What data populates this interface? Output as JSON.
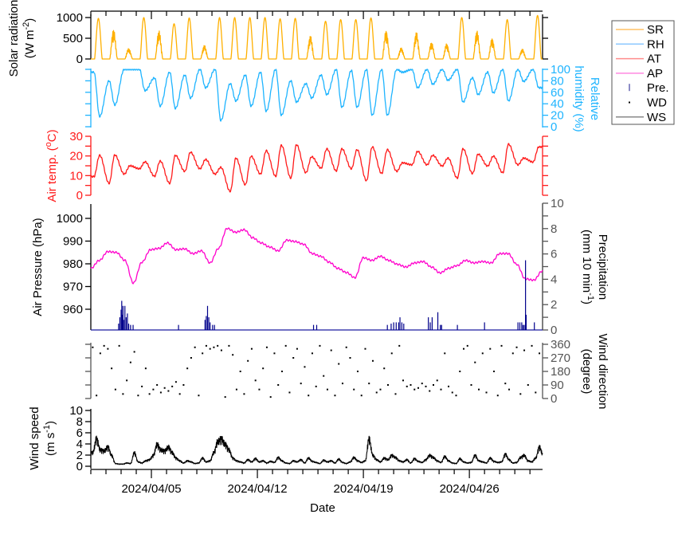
{
  "chart_data": {
    "type": "line",
    "xlabel": "Date",
    "xlim": [
      "2024-04-01T00:00",
      "2024-04-30T20:00"
    ],
    "x_tick_labels": [
      "2024/04/05",
      "2024/04/12",
      "2024/04/19",
      "2024/04/26"
    ],
    "x_tick_dates": [
      "2024-04-05T00:00",
      "2024-04-12T00:00",
      "2024-04-19T00:00",
      "2024-04-26T00:00"
    ],
    "legend": {
      "placement": "right",
      "entries": [
        {
          "label": "SR",
          "color": "#FFC266",
          "mark": "line"
        },
        {
          "label": "RH",
          "color": "#8CC8FF",
          "mark": "line"
        },
        {
          "label": "AT",
          "color": "#FF8C8C",
          "mark": "line"
        },
        {
          "label": "AP",
          "color": "#FF88E0",
          "mark": "line"
        },
        {
          "label": "Pre.",
          "color": "#4040A0",
          "mark": "bar"
        },
        {
          "label": "WD",
          "color": "#000000",
          "mark": "dot"
        },
        {
          "label": "WS",
          "color": "#888888",
          "mark": "line"
        }
      ]
    },
    "panels": {
      "sr": {
        "ylabel": [
          "Solar radiation",
          "(W m",
          "-2",
          ")"
        ],
        "ylim": [
          0,
          1000
        ],
        "ticks": [
          0,
          500,
          1000
        ],
        "color": "#FFB000",
        "daily_peak_start": "2024-04-01",
        "daily_peak_W_m2": [
          980,
          720,
          256,
          1000,
          690,
          850,
          990,
          330,
          1000,
          1000,
          1000,
          1000,
          970,
          980,
          560,
          910,
          950,
          950,
          990,
          690,
          270,
          650,
          400,
          370,
          1000,
          690,
          500,
          950,
          240,
          1050
        ]
      },
      "rh": {
        "ylabel": [
          "Relative",
          "humidity (%)"
        ],
        "ylim": [
          0,
          100
        ],
        "ticks": [
          0,
          20,
          40,
          60,
          80,
          100
        ],
        "color": "#1EB4FF",
        "daily_start": "2024-04-01",
        "daily_min_pct": [
          18,
          38,
          100,
          63,
          36,
          32,
          50,
          68,
          11,
          45,
          36,
          27,
          20,
          43,
          50,
          56,
          34,
          34,
          20,
          20,
          95,
          68,
          74,
          81,
          43,
          56,
          59,
          45,
          79,
          68
        ],
        "daily_night_max_pct": [
          95,
          80,
          100,
          100,
          85,
          95,
          90,
          100,
          100,
          75,
          90,
          95,
          100,
          80,
          75,
          90,
          100,
          98,
          100,
          100,
          100,
          100,
          100,
          100,
          100,
          85,
          95,
          100,
          100,
          100
        ]
      },
      "at": {
        "ylabel": [
          "Air temp. (",
          "o",
          "C)"
        ],
        "ylim": [
          0,
          30
        ],
        "ticks": [
          0,
          10,
          20,
          30
        ],
        "color": "#FF1A1A",
        "daily_start": "2024-04-01",
        "daily_min_C": [
          9.5,
          6.1,
          10.8,
          13.5,
          9.7,
          6.1,
          12.2,
          13.5,
          10.8,
          2.0,
          5.4,
          10.8,
          9.7,
          8.8,
          11.5,
          13.8,
          12.4,
          13.5,
          7.4,
          11.1,
          12.2,
          15.5,
          15.5,
          14.9,
          8.8,
          11.1,
          14.9,
          11.5,
          15.5,
          16.9
        ],
        "daily_max_C": [
          20.3,
          20.5,
          15.0,
          17.0,
          17.4,
          20.3,
          21.9,
          18.2,
          14.2,
          18.9,
          19.9,
          22.7,
          25.4,
          25.7,
          19.6,
          23.6,
          23.6,
          23.2,
          24.6,
          23.2,
          16.5,
          22.3,
          20.3,
          18.9,
          23.6,
          20.9,
          19.9,
          26.0,
          18.9,
          24.6
        ]
      },
      "ap": {
        "ylabel": "Air Pressure (hPa)",
        "ylim": [
          951,
          1006
        ],
        "ticks": [
          960,
          970,
          980,
          990,
          1000
        ],
        "color": "#FF00CC",
        "start": "2024-04-01T00:00",
        "step_hours": 13.5,
        "values_hPa": [
          978,
          981.5,
          985.4,
          985,
          981.5,
          971.5,
          980.7,
          986.2,
          986.8,
          989.2,
          986.2,
          986.6,
          984.5,
          985.7,
          980.4,
          986.8,
          995.6,
          993.9,
          995,
          991.5,
          989.2,
          987.4,
          985.7,
          990.4,
          989.8,
          988.6,
          984.5,
          983.3,
          980.7,
          978,
          976.2,
          973.9,
          982.7,
          981.5,
          983.3,
          981.5,
          979.8,
          978.6,
          980.4,
          981,
          978.6,
          976,
          978,
          979.2,
          981.5,
          980.4,
          981,
          980.4,
          984.5,
          984.5,
          979.8,
          973.4,
          972.8,
          976.8
        ]
      },
      "pre": {
        "ylabel": [
          "Precipitation",
          "(mm 10 min",
          "-1",
          ")"
        ],
        "ylim": [
          0,
          10
        ],
        "ticks": [
          0,
          2,
          4,
          6,
          8,
          10
        ],
        "color": "#00008B",
        "events": [
          [
            "2024-04-02T20:00",
            0.5
          ],
          [
            "2024-04-02T22:00",
            1.0
          ],
          [
            "2024-04-03T00:00",
            1.6
          ],
          [
            "2024-04-03T01:00",
            2.3
          ],
          [
            "2024-04-03T02:00",
            1.2
          ],
          [
            "2024-04-03T03:00",
            1.9
          ],
          [
            "2024-04-03T04:00",
            0.8
          ],
          [
            "2024-04-03T06:00",
            1.9
          ],
          [
            "2024-04-03T08:00",
            1.0
          ],
          [
            "2024-04-03T10:00",
            1.3
          ],
          [
            "2024-04-03T12:00",
            0.5
          ],
          [
            "2024-04-03T15:00",
            0.4
          ],
          [
            "2024-04-03T19:00",
            0.4
          ],
          [
            "2024-04-06T19:00",
            0.4
          ],
          [
            "2024-04-08T13:00",
            0.8
          ],
          [
            "2024-04-08T15:00",
            1.1
          ],
          [
            "2024-04-08T17:00",
            1.9
          ],
          [
            "2024-04-08T19:00",
            1.0
          ],
          [
            "2024-04-08T21:00",
            0.6
          ],
          [
            "2024-04-09T01:00",
            0.4
          ],
          [
            "2024-04-09T04:00",
            0.4
          ],
          [
            "2024-04-15T17:00",
            0.4
          ],
          [
            "2024-04-15T22:00",
            0.4
          ],
          [
            "2024-04-20T14:00",
            0.4
          ],
          [
            "2024-04-20T20:00",
            0.5
          ],
          [
            "2024-04-21T00:00",
            0.6
          ],
          [
            "2024-04-21T04:00",
            0.6
          ],
          [
            "2024-04-21T08:00",
            0.6
          ],
          [
            "2024-04-21T10:00",
            1.0
          ],
          [
            "2024-04-21T13:00",
            0.6
          ],
          [
            "2024-04-21T16:00",
            0.5
          ],
          [
            "2024-04-23T07:00",
            1.0
          ],
          [
            "2024-04-23T10:00",
            0.6
          ],
          [
            "2024-04-23T13:00",
            1.0
          ],
          [
            "2024-04-23T22:00",
            1.4
          ],
          [
            "2024-04-24T02:00",
            0.4
          ],
          [
            "2024-04-24T04:00",
            0.4
          ],
          [
            "2024-04-25T05:00",
            0.4
          ],
          [
            "2024-04-27T00:00",
            0.6
          ],
          [
            "2024-04-29T05:00",
            0.6
          ],
          [
            "2024-04-29T08:00",
            0.6
          ],
          [
            "2024-04-29T11:00",
            0.6
          ],
          [
            "2024-04-29T13:00",
            0.4
          ],
          [
            "2024-04-29T15:00",
            0.4
          ],
          [
            "2024-04-29T17:00",
            5.5
          ],
          [
            "2024-04-29T18:00",
            1.2
          ],
          [
            "2024-04-30T07:00",
            0.6
          ]
        ]
      },
      "wd": {
        "ylabel": [
          "Wind direction",
          "(degree)"
        ],
        "ylim": [
          0,
          360
        ],
        "ticks": [
          0,
          90,
          180,
          270,
          360
        ],
        "color": "#000000",
        "start": "2024-04-01T00:00",
        "step_hours": 6,
        "values_deg": [
          340,
          20,
          300,
          350,
          330,
          200,
          60,
          350,
          30,
          120,
          240,
          310,
          20,
          80,
          200,
          30,
          60,
          90,
          40,
          70,
          50,
          80,
          110,
          30,
          90,
          200,
          270,
          340,
          20,
          300,
          350,
          330,
          340,
          350,
          320,
          10,
          350,
          290,
          60,
          180,
          30,
          250,
          330,
          120,
          60,
          200,
          340,
          10,
          300,
          90,
          180,
          350,
          40,
          270,
          330,
          100,
          210,
          20,
          300,
          80,
          350,
          150,
          60,
          320,
          20,
          230,
          100,
          340,
          270,
          60,
          180,
          20,
          330,
          100,
          250,
          40,
          60,
          200,
          90,
          300,
          30,
          350,
          120,
          80,
          90,
          60,
          70,
          100,
          80,
          50,
          90,
          120,
          60,
          300,
          80,
          40,
          20,
          180,
          330,
          350,
          90,
          240,
          60,
          300,
          40,
          330,
          180,
          20,
          350,
          100,
          60,
          300,
          340,
          30,
          320,
          90,
          350,
          40,
          300,
          330
        ]
      },
      "ws": {
        "ylabel": [
          "Wind speed",
          "(m s",
          "-1",
          ")"
        ],
        "ylim": [
          0,
          10
        ],
        "ticks": [
          0,
          2,
          4,
          6,
          8,
          10
        ],
        "color": "#000000",
        "start": "2024-04-01T00:00",
        "step_hours": 6,
        "values_m_s": [
          2.5,
          5.0,
          3.0,
          2.8,
          3.5,
          2.0,
          0.5,
          0.4,
          0.4,
          0.6,
          0.5,
          2.5,
          0.8,
          0.6,
          1.0,
          1.2,
          2.0,
          4.0,
          3.0,
          2.8,
          3.5,
          2.5,
          1.5,
          1.0,
          0.6,
          1.0,
          0.8,
          0.5,
          0.6,
          1.5,
          0.8,
          1.0,
          2.5,
          4.5,
          5.0,
          4.0,
          3.0,
          1.5,
          1.0,
          0.8,
          0.6,
          1.2,
          0.8,
          1.4,
          0.8,
          1.0,
          0.6,
          0.9,
          0.7,
          1.6,
          1.0,
          0.6,
          0.5,
          1.0,
          0.8,
          1.2,
          0.6,
          1.5,
          0.9,
          0.7,
          0.5,
          1.1,
          0.8,
          1.0,
          0.6,
          1.3,
          0.7,
          0.5,
          0.8,
          1.6,
          1.0,
          0.7,
          1.0,
          5.0,
          2.0,
          1.2,
          0.8,
          1.5,
          1.2,
          2.0,
          1.6,
          1.0,
          0.8,
          1.2,
          0.6,
          1.4,
          0.9,
          0.7,
          1.2,
          2.0,
          1.6,
          1.0,
          0.7,
          1.8,
          1.0,
          0.6,
          0.5,
          1.4,
          0.8,
          0.6,
          0.7,
          2.0,
          1.0,
          0.8,
          0.6,
          1.5,
          0.9,
          0.7,
          0.8,
          2.2,
          1.2,
          0.6,
          0.7,
          1.6,
          2.0,
          1.0,
          0.8,
          1.5,
          3.5,
          2.0
        ]
      }
    }
  }
}
